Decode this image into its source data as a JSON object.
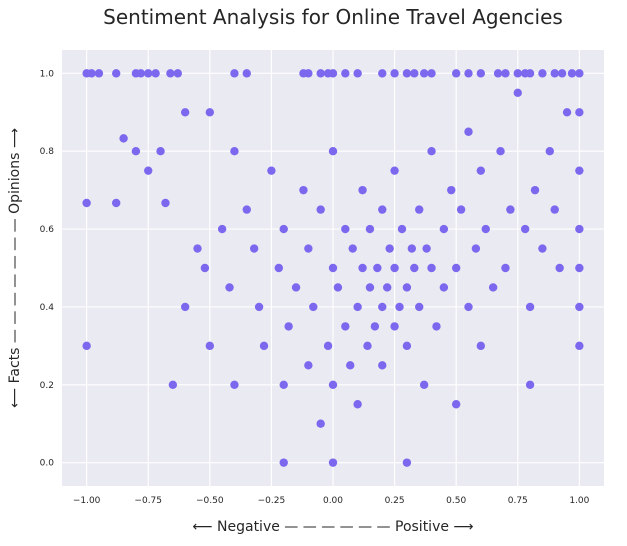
{
  "chart_data": {
    "type": "scatter",
    "title": "Sentiment Analysis for Online Travel Agencies",
    "xlabel": "⟵ Negative — — — — — — Positive ⟶",
    "ylabel": "⟵ Facts — — — — — — — Opinions ⟶",
    "xlim": [
      -1.1,
      1.1
    ],
    "ylim": [
      -0.06,
      1.06
    ],
    "xticks": [
      -1.0,
      -0.75,
      -0.5,
      -0.25,
      0.0,
      0.25,
      0.5,
      0.75,
      1.0
    ],
    "xtick_labels": [
      "−1.00",
      "−0.75",
      "−0.50",
      "−0.25",
      "0.00",
      "0.25",
      "0.50",
      "0.75",
      "1.00"
    ],
    "yticks": [
      0.0,
      0.2,
      0.4,
      0.6,
      0.8,
      1.0
    ],
    "ytick_labels": [
      "0.0",
      "0.2",
      "0.4",
      "0.6",
      "0.8",
      "1.0"
    ],
    "grid": true,
    "marker_color": "#7b68ee",
    "background_color": "#eaeaf2",
    "points": [
      [
        -1.0,
        1.0
      ],
      [
        -0.98,
        1.0
      ],
      [
        -0.95,
        1.0
      ],
      [
        -0.88,
        1.0
      ],
      [
        -0.8,
        1.0
      ],
      [
        -0.78,
        1.0
      ],
      [
        -0.75,
        1.0
      ],
      [
        -0.72,
        1.0
      ],
      [
        -0.66,
        1.0
      ],
      [
        -0.63,
        1.0
      ],
      [
        -0.4,
        1.0
      ],
      [
        -0.35,
        1.0
      ],
      [
        -0.12,
        1.0
      ],
      [
        -0.1,
        1.0
      ],
      [
        -0.05,
        1.0
      ],
      [
        -0.02,
        1.0
      ],
      [
        0.0,
        1.0
      ],
      [
        0.05,
        1.0
      ],
      [
        0.1,
        1.0
      ],
      [
        0.2,
        1.0
      ],
      [
        0.25,
        1.0
      ],
      [
        0.3,
        1.0
      ],
      [
        0.33,
        1.0
      ],
      [
        0.37,
        1.0
      ],
      [
        0.4,
        1.0
      ],
      [
        0.5,
        1.0
      ],
      [
        0.55,
        1.0
      ],
      [
        0.6,
        1.0
      ],
      [
        0.67,
        1.0
      ],
      [
        0.7,
        1.0
      ],
      [
        0.75,
        1.0
      ],
      [
        0.78,
        1.0
      ],
      [
        0.8,
        1.0
      ],
      [
        0.85,
        1.0
      ],
      [
        0.9,
        1.0
      ],
      [
        0.93,
        1.0
      ],
      [
        0.97,
        1.0
      ],
      [
        1.0,
        1.0
      ],
      [
        -1.0,
        0.667
      ],
      [
        -1.0,
        0.3
      ],
      [
        -0.88,
        0.667
      ],
      [
        -0.85,
        0.833
      ],
      [
        -0.8,
        0.8
      ],
      [
        -0.75,
        0.75
      ],
      [
        -0.7,
        0.8
      ],
      [
        -0.68,
        0.667
      ],
      [
        -0.65,
        0.2
      ],
      [
        -0.6,
        0.9
      ],
      [
        -0.6,
        0.4
      ],
      [
        -0.55,
        0.55
      ],
      [
        -0.52,
        0.5
      ],
      [
        -0.5,
        0.9
      ],
      [
        -0.5,
        0.3
      ],
      [
        -0.45,
        0.6
      ],
      [
        -0.42,
        0.45
      ],
      [
        -0.4,
        0.8
      ],
      [
        -0.4,
        0.2
      ],
      [
        -0.35,
        0.65
      ],
      [
        -0.32,
        0.55
      ],
      [
        -0.3,
        0.4
      ],
      [
        -0.28,
        0.3
      ],
      [
        -0.25,
        0.75
      ],
      [
        -0.22,
        0.5
      ],
      [
        -0.2,
        0.6
      ],
      [
        -0.2,
        0.2
      ],
      [
        -0.2,
        0.0
      ],
      [
        -0.18,
        0.35
      ],
      [
        -0.15,
        0.45
      ],
      [
        -0.12,
        0.7
      ],
      [
        -0.1,
        0.25
      ],
      [
        -0.1,
        0.55
      ],
      [
        -0.08,
        0.4
      ],
      [
        -0.05,
        0.65
      ],
      [
        -0.05,
        0.1
      ],
      [
        -0.02,
        0.3
      ],
      [
        0.0,
        0.5
      ],
      [
        0.0,
        0.0
      ],
      [
        0.0,
        0.2
      ],
      [
        0.0,
        0.8
      ],
      [
        0.02,
        0.45
      ],
      [
        0.05,
        0.35
      ],
      [
        0.05,
        0.6
      ],
      [
        0.07,
        0.25
      ],
      [
        0.08,
        0.55
      ],
      [
        0.1,
        0.4
      ],
      [
        0.1,
        0.15
      ],
      [
        0.12,
        0.5
      ],
      [
        0.12,
        0.7
      ],
      [
        0.14,
        0.3
      ],
      [
        0.15,
        0.45
      ],
      [
        0.15,
        0.6
      ],
      [
        0.17,
        0.35
      ],
      [
        0.18,
        0.5
      ],
      [
        0.2,
        0.4
      ],
      [
        0.2,
        0.25
      ],
      [
        0.2,
        0.65
      ],
      [
        0.22,
        0.45
      ],
      [
        0.23,
        0.55
      ],
      [
        0.25,
        0.35
      ],
      [
        0.25,
        0.5
      ],
      [
        0.25,
        0.75
      ],
      [
        0.27,
        0.4
      ],
      [
        0.28,
        0.6
      ],
      [
        0.3,
        0.45
      ],
      [
        0.3,
        0.3
      ],
      [
        0.3,
        0.0
      ],
      [
        0.32,
        0.55
      ],
      [
        0.33,
        0.5
      ],
      [
        0.35,
        0.4
      ],
      [
        0.35,
        0.65
      ],
      [
        0.37,
        0.2
      ],
      [
        0.38,
        0.55
      ],
      [
        0.4,
        0.5
      ],
      [
        0.4,
        0.8
      ],
      [
        0.42,
        0.35
      ],
      [
        0.45,
        0.6
      ],
      [
        0.45,
        0.45
      ],
      [
        0.48,
        0.7
      ],
      [
        0.5,
        0.5
      ],
      [
        0.5,
        0.15
      ],
      [
        0.52,
        0.65
      ],
      [
        0.55,
        0.4
      ],
      [
        0.55,
        0.85
      ],
      [
        0.58,
        0.55
      ],
      [
        0.6,
        0.75
      ],
      [
        0.6,
        0.3
      ],
      [
        0.62,
        0.6
      ],
      [
        0.65,
        0.45
      ],
      [
        0.68,
        0.8
      ],
      [
        0.7,
        0.5
      ],
      [
        0.72,
        0.65
      ],
      [
        0.75,
        0.95
      ],
      [
        0.78,
        0.6
      ],
      [
        0.8,
        0.4
      ],
      [
        0.8,
        0.2
      ],
      [
        0.82,
        0.7
      ],
      [
        0.85,
        0.55
      ],
      [
        0.88,
        0.8
      ],
      [
        0.9,
        0.65
      ],
      [
        0.92,
        0.5
      ],
      [
        0.95,
        0.9
      ],
      [
        1.0,
        0.9
      ],
      [
        1.0,
        0.75
      ],
      [
        1.0,
        0.6
      ],
      [
        1.0,
        0.5
      ],
      [
        1.0,
        0.4
      ],
      [
        1.0,
        0.3
      ]
    ]
  }
}
